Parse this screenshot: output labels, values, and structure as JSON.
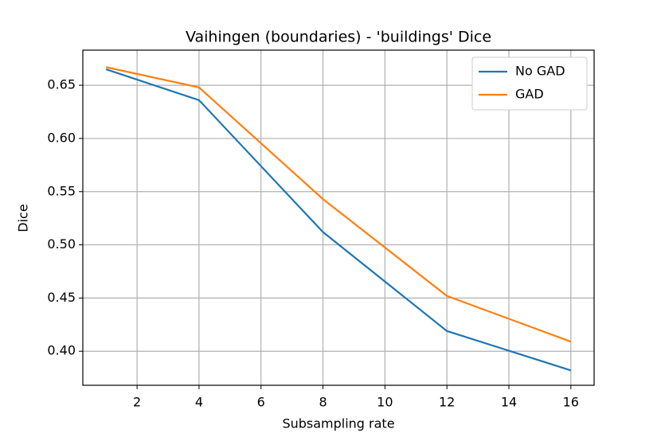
{
  "chart_data": {
    "type": "line",
    "title": "Vaihingen (boundaries) - 'buildings' Dice",
    "x_label": "Subsampling rate",
    "y_label": "Dice",
    "x": [
      1,
      4,
      8,
      12,
      16
    ],
    "series": [
      {
        "name": "No GAD",
        "color": "#1f77b4",
        "values": [
          0.665,
          0.636,
          0.512,
          0.419,
          0.382
        ]
      },
      {
        "name": "GAD",
        "color": "#ff7f0e",
        "values": [
          0.667,
          0.648,
          0.543,
          0.452,
          0.409
        ]
      }
    ],
    "xlim": [
      0.25,
      16.75
    ],
    "ylim": [
      0.368,
      0.683
    ],
    "xticks": [
      2,
      4,
      6,
      8,
      10,
      12,
      14,
      16
    ],
    "yticks": [
      {
        "value": 0.4,
        "label": "0.40"
      },
      0.45,
      {
        "value": 0.5,
        "label": "0.50"
      },
      0.55,
      {
        "value": 0.6,
        "label": "0.60"
      },
      0.65
    ],
    "grid": true,
    "legend": "upper right"
  }
}
